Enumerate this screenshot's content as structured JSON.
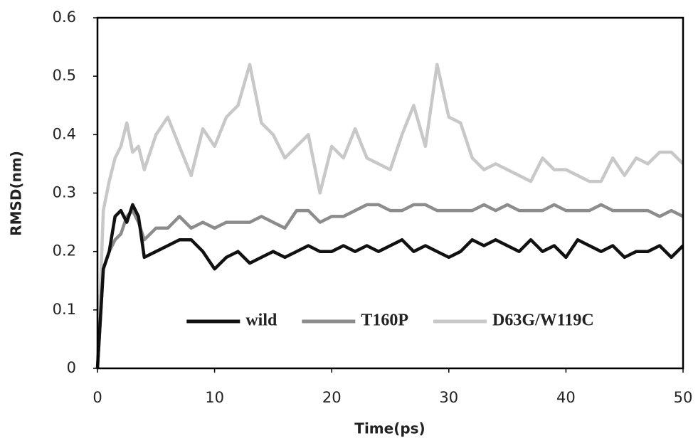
{
  "chart_data": {
    "type": "line",
    "xlabel": "Time(ps)",
    "ylabel": "RMSD(nm)",
    "x": [
      0,
      0.5,
      1,
      1.5,
      2,
      2.5,
      3,
      3.5,
      4,
      5,
      6,
      7,
      8,
      9,
      10,
      11,
      12,
      13,
      14,
      15,
      16,
      17,
      18,
      19,
      20,
      21,
      22,
      23,
      24,
      25,
      26,
      27,
      28,
      29,
      30,
      31,
      32,
      33,
      34,
      35,
      36,
      37,
      38,
      39,
      40,
      41,
      42,
      43,
      44,
      45,
      46,
      47,
      48,
      49,
      50
    ],
    "series": [
      {
        "name": "wild",
        "color": "#111111",
        "values": [
          0,
          0.17,
          0.2,
          0.26,
          0.27,
          0.25,
          0.28,
          0.26,
          0.19,
          0.2,
          0.21,
          0.22,
          0.22,
          0.2,
          0.17,
          0.19,
          0.2,
          0.18,
          0.19,
          0.2,
          0.19,
          0.2,
          0.21,
          0.2,
          0.2,
          0.21,
          0.2,
          0.21,
          0.2,
          0.21,
          0.22,
          0.2,
          0.21,
          0.2,
          0.19,
          0.2,
          0.22,
          0.21,
          0.22,
          0.21,
          0.2,
          0.22,
          0.2,
          0.21,
          0.19,
          0.22,
          0.21,
          0.2,
          0.21,
          0.19,
          0.2,
          0.2,
          0.21,
          0.19,
          0.21
        ]
      },
      {
        "name": "T160P",
        "color": "#8c8c8c",
        "values": [
          0,
          0.17,
          0.2,
          0.22,
          0.23,
          0.26,
          0.27,
          0.25,
          0.22,
          0.24,
          0.24,
          0.26,
          0.24,
          0.25,
          0.24,
          0.25,
          0.25,
          0.25,
          0.26,
          0.25,
          0.24,
          0.27,
          0.27,
          0.25,
          0.26,
          0.26,
          0.27,
          0.28,
          0.28,
          0.27,
          0.27,
          0.28,
          0.28,
          0.27,
          0.27,
          0.27,
          0.27,
          0.28,
          0.27,
          0.28,
          0.27,
          0.27,
          0.27,
          0.28,
          0.27,
          0.27,
          0.27,
          0.28,
          0.27,
          0.27,
          0.27,
          0.27,
          0.26,
          0.27,
          0.26
        ]
      },
      {
        "name": "D63G/W119C",
        "color": "#c8c8c8",
        "values": [
          0,
          0.27,
          0.32,
          0.36,
          0.38,
          0.42,
          0.37,
          0.38,
          0.34,
          0.4,
          0.43,
          0.38,
          0.33,
          0.41,
          0.38,
          0.43,
          0.45,
          0.52,
          0.42,
          0.4,
          0.36,
          0.38,
          0.4,
          0.3,
          0.38,
          0.36,
          0.41,
          0.36,
          0.35,
          0.34,
          0.4,
          0.45,
          0.38,
          0.52,
          0.43,
          0.42,
          0.36,
          0.34,
          0.35,
          0.34,
          0.33,
          0.32,
          0.36,
          0.34,
          0.34,
          0.33,
          0.32,
          0.32,
          0.36,
          0.33,
          0.36,
          0.35,
          0.37,
          0.37,
          0.35
        ]
      }
    ],
    "xlim": [
      0,
      50
    ],
    "xticks": [
      0,
      10,
      20,
      30,
      40,
      50
    ],
    "ylim": [
      0,
      0.6
    ],
    "yticks": [
      0,
      0.1,
      0.2,
      0.3,
      0.4,
      0.5,
      0.6
    ],
    "legend": "lower center",
    "grid": false
  }
}
